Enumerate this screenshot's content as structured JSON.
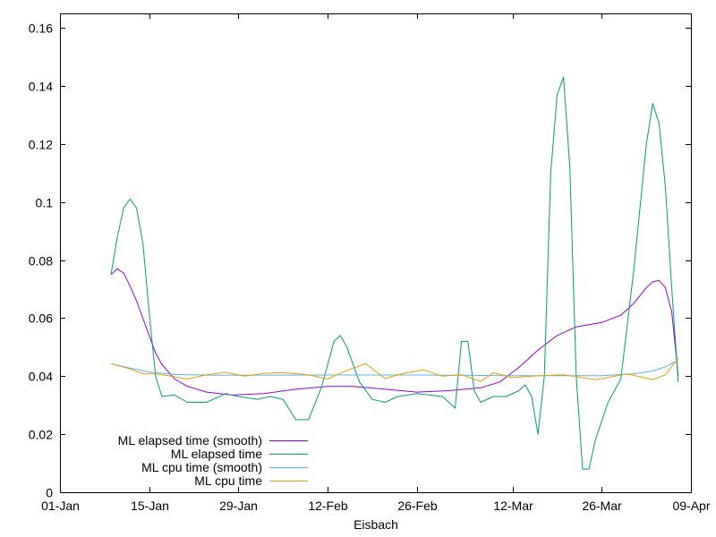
{
  "chart_data": {
    "type": "line",
    "xlabel": "Eisbach",
    "ylabel": "",
    "title": "",
    "xlim": [
      "2024-01-01",
      "2024-04-09"
    ],
    "ylim": [
      0,
      0.165
    ],
    "xticks": [
      {
        "label": "01-Jan",
        "date": "2024-01-01"
      },
      {
        "label": "15-Jan",
        "date": "2024-01-15"
      },
      {
        "label": "29-Jan",
        "date": "2024-01-29"
      },
      {
        "label": "12-Feb",
        "date": "2024-02-12"
      },
      {
        "label": "26-Feb",
        "date": "2024-02-26"
      },
      {
        "label": "12-Mar",
        "date": "2024-03-12"
      },
      {
        "label": "26-Mar",
        "date": "2024-03-26"
      },
      {
        "label": "09-Apr",
        "date": "2024-04-09"
      }
    ],
    "yticks": [
      {
        "label": "0",
        "value": 0
      },
      {
        "label": "0.02",
        "value": 0.02
      },
      {
        "label": "0.04",
        "value": 0.04
      },
      {
        "label": "0.06",
        "value": 0.06
      },
      {
        "label": "0.08",
        "value": 0.08
      },
      {
        "label": "0.1",
        "value": 0.1
      },
      {
        "label": "0.12",
        "value": 0.12
      },
      {
        "label": "0.14",
        "value": 0.14
      },
      {
        "label": "0.16",
        "value": 0.16
      }
    ],
    "grid": false,
    "legend": "bottom-left",
    "series": [
      {
        "name": "ML elapsed time (smooth)",
        "color": "#9400d3",
        "points": [
          [
            "2024-01-09",
            0.075
          ],
          [
            "2024-01-10",
            0.077
          ],
          [
            "2024-01-11",
            0.0755
          ],
          [
            "2024-01-12",
            0.071
          ],
          [
            "2024-01-13",
            0.066
          ],
          [
            "2024-01-14",
            0.06
          ],
          [
            "2024-01-15",
            0.054
          ],
          [
            "2024-01-16",
            0.048
          ],
          [
            "2024-01-17",
            0.044
          ],
          [
            "2024-01-19",
            0.039
          ],
          [
            "2024-01-21",
            0.0365
          ],
          [
            "2024-01-24",
            0.0345
          ],
          [
            "2024-01-28",
            0.0335
          ],
          [
            "2024-02-02",
            0.034
          ],
          [
            "2024-02-07",
            0.0355
          ],
          [
            "2024-02-12",
            0.0365
          ],
          [
            "2024-02-16",
            0.0365
          ],
          [
            "2024-02-21",
            0.0355
          ],
          [
            "2024-02-26",
            0.0345
          ],
          [
            "2024-03-02",
            0.035
          ],
          [
            "2024-03-07",
            0.036
          ],
          [
            "2024-03-10",
            0.038
          ],
          [
            "2024-03-13",
            0.043
          ],
          [
            "2024-03-16",
            0.049
          ],
          [
            "2024-03-19",
            0.054
          ],
          [
            "2024-03-22",
            0.057
          ],
          [
            "2024-03-26",
            0.0585
          ],
          [
            "2024-03-29",
            0.061
          ],
          [
            "2024-03-31",
            0.065
          ],
          [
            "2024-04-02",
            0.0705
          ],
          [
            "2024-04-03",
            0.0725
          ],
          [
            "2024-04-04",
            0.073
          ],
          [
            "2024-04-05",
            0.0705
          ],
          [
            "2024-04-06",
            0.062
          ],
          [
            "2024-04-07",
            0.04
          ]
        ]
      },
      {
        "name": "ML elapsed time",
        "color": "#009e73",
        "points": [
          [
            "2024-01-09",
            0.075
          ],
          [
            "2024-01-10",
            0.088
          ],
          [
            "2024-01-11",
            0.098
          ],
          [
            "2024-01-12",
            0.101
          ],
          [
            "2024-01-13",
            0.098
          ],
          [
            "2024-01-14",
            0.086
          ],
          [
            "2024-01-15",
            0.062
          ],
          [
            "2024-01-16",
            0.04
          ],
          [
            "2024-01-17",
            0.033
          ],
          [
            "2024-01-19",
            0.0335
          ],
          [
            "2024-01-21",
            0.031
          ],
          [
            "2024-01-24",
            0.031
          ],
          [
            "2024-01-27",
            0.034
          ],
          [
            "2024-01-29",
            0.033
          ],
          [
            "2024-02-01",
            0.032
          ],
          [
            "2024-02-03",
            0.033
          ],
          [
            "2024-02-05",
            0.032
          ],
          [
            "2024-02-07",
            0.025
          ],
          [
            "2024-02-09",
            0.025
          ],
          [
            "2024-02-11",
            0.036
          ],
          [
            "2024-02-13",
            0.052
          ],
          [
            "2024-02-14",
            0.054
          ],
          [
            "2024-02-15",
            0.05
          ],
          [
            "2024-02-17",
            0.038
          ],
          [
            "2024-02-19",
            0.032
          ],
          [
            "2024-02-21",
            0.031
          ],
          [
            "2024-02-23",
            0.033
          ],
          [
            "2024-02-26",
            0.034
          ],
          [
            "2024-03-01",
            0.033
          ],
          [
            "2024-03-03",
            0.029
          ],
          [
            "2024-03-04",
            0.052
          ],
          [
            "2024-03-05",
            0.052
          ],
          [
            "2024-03-06",
            0.035
          ],
          [
            "2024-03-07",
            0.031
          ],
          [
            "2024-03-09",
            0.033
          ],
          [
            "2024-03-11",
            0.033
          ],
          [
            "2024-03-13",
            0.035
          ],
          [
            "2024-03-14",
            0.037
          ],
          [
            "2024-03-15",
            0.033
          ],
          [
            "2024-03-16",
            0.02
          ],
          [
            "2024-03-17",
            0.04
          ],
          [
            "2024-03-18",
            0.11
          ],
          [
            "2024-03-19",
            0.137
          ],
          [
            "2024-03-20",
            0.143
          ],
          [
            "2024-03-21",
            0.112
          ],
          [
            "2024-03-22",
            0.04
          ],
          [
            "2024-03-23",
            0.008
          ],
          [
            "2024-03-24",
            0.008
          ],
          [
            "2024-03-25",
            0.018
          ],
          [
            "2024-03-27",
            0.031
          ],
          [
            "2024-03-29",
            0.039
          ],
          [
            "2024-03-31",
            0.076
          ],
          [
            "2024-04-02",
            0.12
          ],
          [
            "2024-04-03",
            0.134
          ],
          [
            "2024-04-04",
            0.127
          ],
          [
            "2024-04-05",
            0.105
          ],
          [
            "2024-04-06",
            0.07
          ],
          [
            "2024-04-07",
            0.038
          ]
        ]
      },
      {
        "name": "ML cpu time (smooth)",
        "color": "#56b4e9",
        "points": [
          [
            "2024-01-09",
            0.0443
          ],
          [
            "2024-01-12",
            0.0428
          ],
          [
            "2024-01-15",
            0.0414
          ],
          [
            "2024-01-19",
            0.0406
          ],
          [
            "2024-01-25",
            0.0403
          ],
          [
            "2024-02-12",
            0.0404
          ],
          [
            "2024-02-26",
            0.0404
          ],
          [
            "2024-03-12",
            0.0402
          ],
          [
            "2024-03-26",
            0.0402
          ],
          [
            "2024-03-31",
            0.0408
          ],
          [
            "2024-04-03",
            0.0418
          ],
          [
            "2024-04-05",
            0.0432
          ],
          [
            "2024-04-07",
            0.0455
          ]
        ]
      },
      {
        "name": "ML cpu time",
        "color": "#e69f00",
        "points": [
          [
            "2024-01-09",
            0.0443
          ],
          [
            "2024-01-12",
            0.0425
          ],
          [
            "2024-01-14",
            0.0408
          ],
          [
            "2024-01-16",
            0.0408
          ],
          [
            "2024-01-18",
            0.0402
          ],
          [
            "2024-01-21",
            0.039
          ],
          [
            "2024-01-24",
            0.0405
          ],
          [
            "2024-01-27",
            0.0413
          ],
          [
            "2024-01-30",
            0.04
          ],
          [
            "2024-02-02",
            0.041
          ],
          [
            "2024-02-05",
            0.0412
          ],
          [
            "2024-02-09",
            0.0405
          ],
          [
            "2024-02-12",
            0.039
          ],
          [
            "2024-02-15",
            0.042
          ],
          [
            "2024-02-18",
            0.0443
          ],
          [
            "2024-02-21",
            0.0392
          ],
          [
            "2024-02-24",
            0.041
          ],
          [
            "2024-02-27",
            0.0422
          ],
          [
            "2024-03-01",
            0.04
          ],
          [
            "2024-03-04",
            0.0405
          ],
          [
            "2024-03-07",
            0.0382
          ],
          [
            "2024-03-09",
            0.0412
          ],
          [
            "2024-03-12",
            0.0395
          ],
          [
            "2024-03-15",
            0.04
          ],
          [
            "2024-03-20",
            0.0405
          ],
          [
            "2024-03-25",
            0.0388
          ],
          [
            "2024-03-30",
            0.0408
          ],
          [
            "2024-04-03",
            0.0388
          ],
          [
            "2024-04-05",
            0.0405
          ],
          [
            "2024-04-07",
            0.0462
          ]
        ]
      }
    ]
  }
}
